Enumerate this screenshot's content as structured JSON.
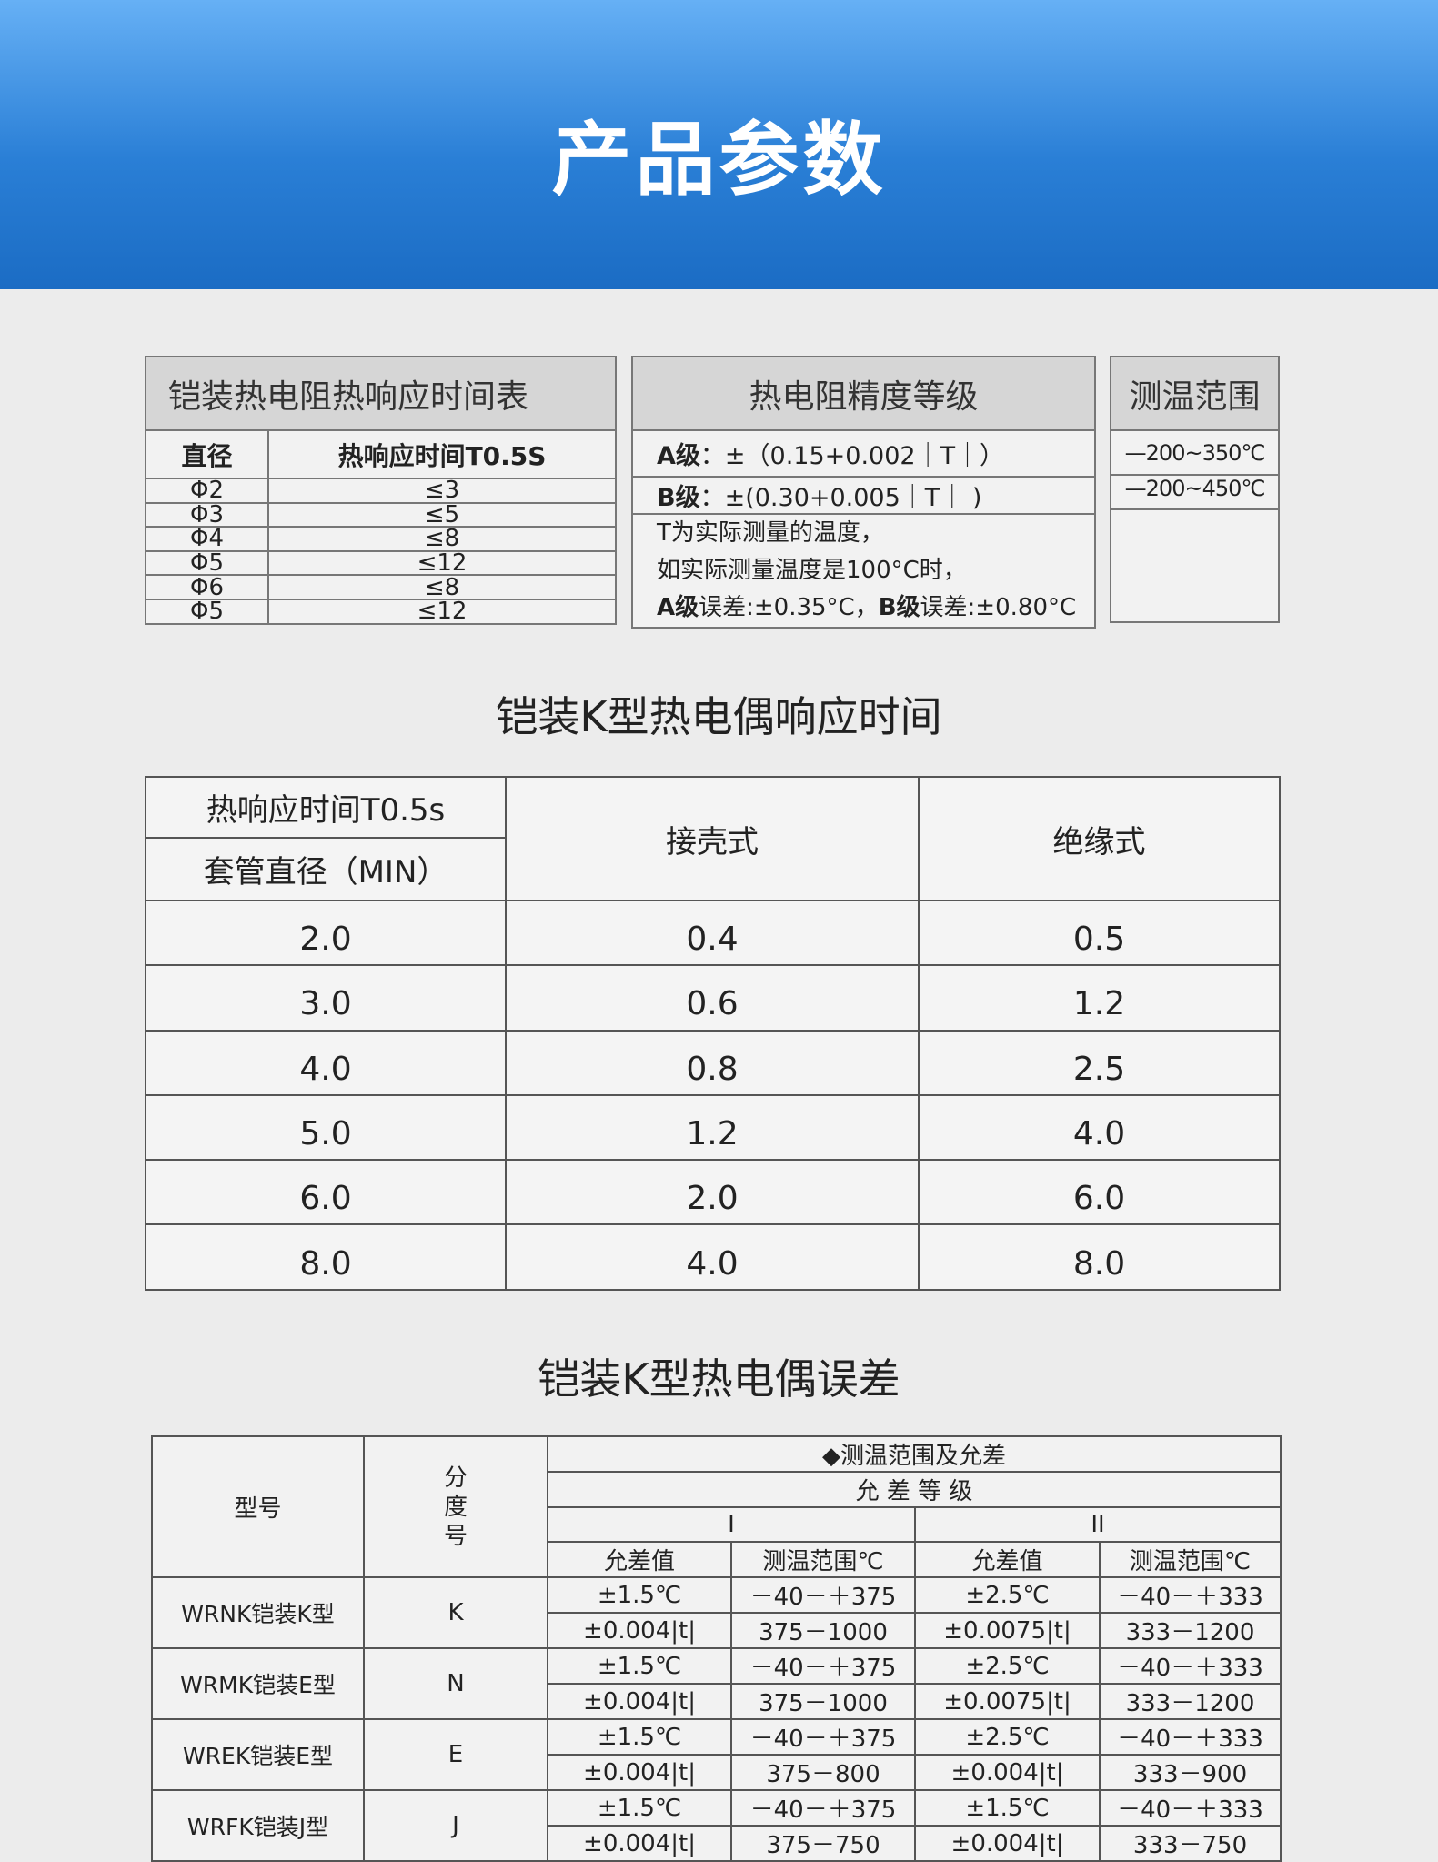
{
  "header": {
    "title": "产品参数"
  },
  "rtd_response": {
    "title": "铠装热电阻热响应时间表",
    "col1": "直径",
    "col2": "热响应时间T0.5S",
    "rows": [
      [
        "Φ2",
        "≤3"
      ],
      [
        "Φ3",
        "≤5"
      ],
      [
        "Φ4",
        "≤8"
      ],
      [
        "Φ5",
        "≤12"
      ],
      [
        "Φ6",
        "≤8"
      ],
      [
        "Φ5",
        "≤12"
      ]
    ]
  },
  "rtd_accuracy": {
    "title": "热电阻精度等级",
    "a_label": "A级",
    "a_text": "：±（0.15+0.002｜T｜）",
    "b_label": "B级",
    "b_text": "：±(0.30+0.005｜T｜ )",
    "note1": "T为实际测量的温度，",
    "note2": "如实际测量温度是100°C时，",
    "note3_a": "A级",
    "note3_b": "误差:±0.35°C，",
    "note3_c": "B级",
    "note3_d": "误差:±0.80°C"
  },
  "range": {
    "title": "测温范围",
    "r1": "—200~350℃",
    "r2": "—200~450℃"
  },
  "k_response": {
    "title": "铠装K型热电偶响应时间",
    "h1": "热响应时间T0.5s",
    "h2": "套管直径（MIN）",
    "h3": "接壳式",
    "h4": "绝缘式",
    "rows": [
      [
        "2.0",
        "0.4",
        "0.5"
      ],
      [
        "3.0",
        "0.6",
        "1.2"
      ],
      [
        "4.0",
        "0.8",
        "2.5"
      ],
      [
        "5.0",
        "1.2",
        "4.0"
      ],
      [
        "6.0",
        "2.0",
        "6.0"
      ],
      [
        "8.0",
        "4.0",
        "8.0"
      ]
    ]
  },
  "k_error": {
    "title": "铠装K型热电偶误差",
    "h_model": "型号",
    "h_grad": "分度号",
    "h_range": "◆测温范围及允差",
    "h_class": "允 差 等 级",
    "h_I": "I",
    "h_II": "II",
    "h_tol": "允差值",
    "h_rng": "测温范围℃",
    "groups": [
      {
        "model": "WRNK铠装K型",
        "grad": "K",
        "rows": [
          [
            "±1.5℃",
            "－40－＋375",
            "±2.5℃",
            "－40－＋333"
          ],
          [
            "±0.004|t|",
            "375－1000",
            "±0.0075|t|",
            "333－1200"
          ]
        ]
      },
      {
        "model": "WRMK铠装E型",
        "grad": "N",
        "rows": [
          [
            "±1.5℃",
            "－40－＋375",
            "±2.5℃",
            "－40－＋333"
          ],
          [
            "±0.004|t|",
            "375－1000",
            "±0.0075|t|",
            "333－1200"
          ]
        ]
      },
      {
        "model": "WREK铠装E型",
        "grad": "E",
        "rows": [
          [
            "±1.5℃",
            "－40－＋375",
            "±2.5℃",
            "－40－＋333"
          ],
          [
            "±0.004|t|",
            "375－800",
            "±0.004|t|",
            "333－900"
          ]
        ]
      },
      {
        "model": "WRFK铠装J型",
        "grad": "J",
        "rows": [
          [
            "±1.5℃",
            "－40－＋375",
            "±1.5℃",
            "－40－＋333"
          ],
          [
            "±0.004|t|",
            "375－750",
            "±0.004|t|",
            "333－750"
          ]
        ]
      }
    ]
  }
}
